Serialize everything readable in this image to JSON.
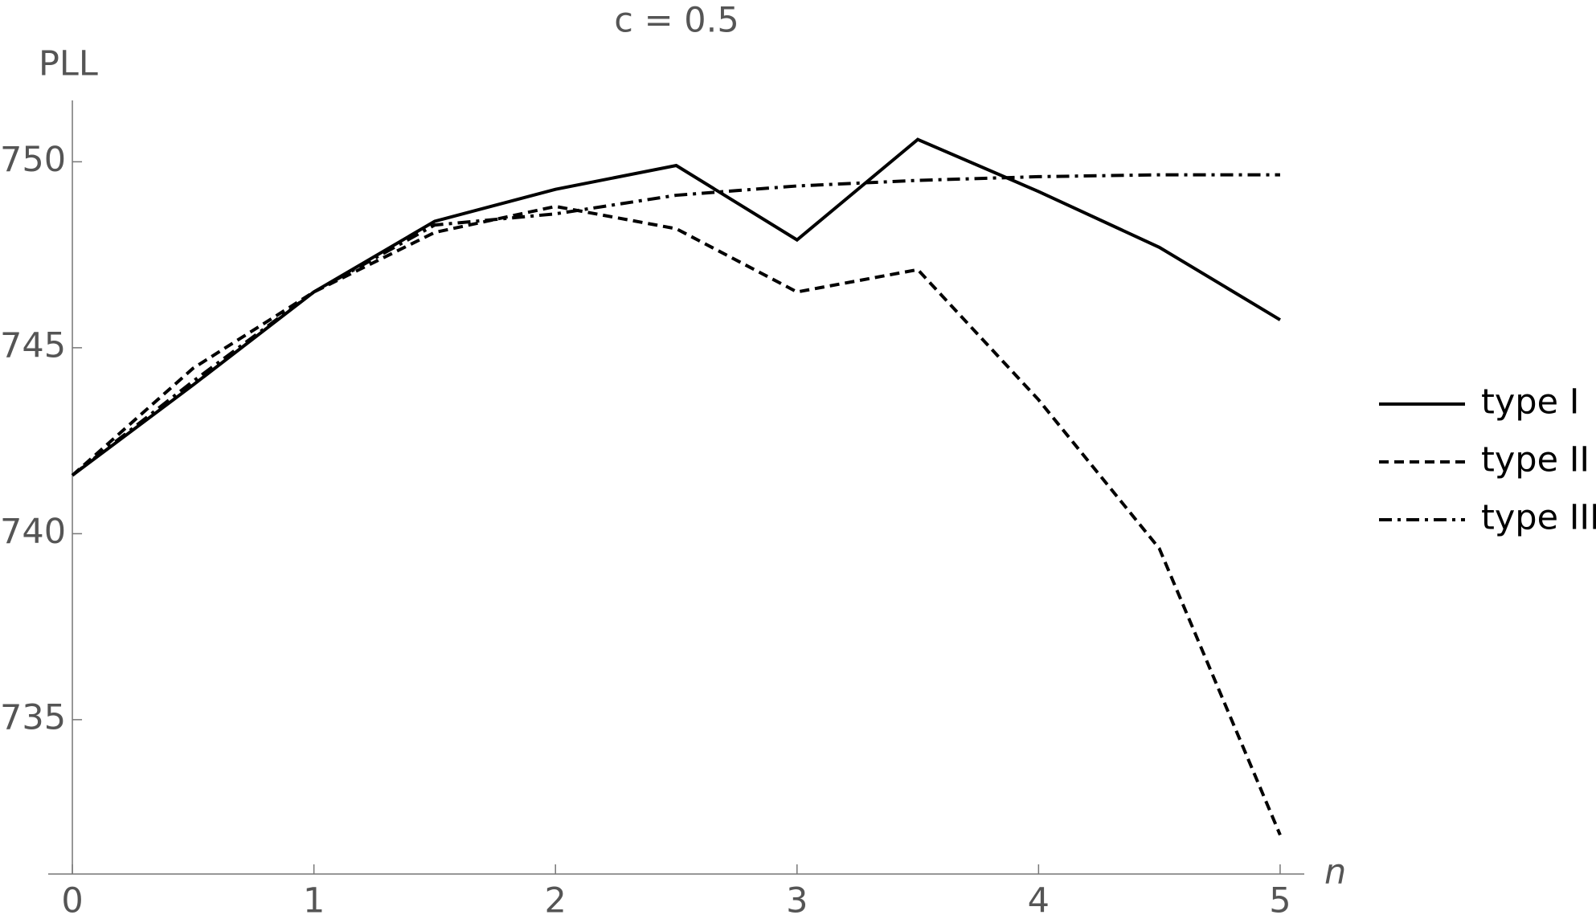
{
  "chart_data": {
    "type": "line",
    "title": "c = 0.5",
    "y_label": "PLL",
    "x_label": "n",
    "x": [
      0,
      0.5,
      1,
      1.5,
      2,
      2.5,
      3,
      3.5,
      4,
      4.5,
      5
    ],
    "series": [
      {
        "name": "type I",
        "color": "#000000",
        "line_style": "solid",
        "values": [
          741.57,
          744.0,
          746.5,
          748.4,
          749.26,
          749.9,
          747.9,
          750.6,
          749.2,
          747.7,
          745.75
        ]
      },
      {
        "name": "type II",
        "color": "#000000",
        "line_style": "dashed",
        "values": [
          741.57,
          744.45,
          746.5,
          748.1,
          748.8,
          748.2,
          746.5,
          747.1,
          743.6,
          739.6,
          731.9
        ]
      },
      {
        "name": "type III",
        "color": "#000000",
        "line_style": "dashdot",
        "values": [
          741.57,
          744.1,
          746.5,
          748.3,
          748.6,
          749.1,
          749.35,
          749.5,
          749.6,
          749.65,
          749.65
        ]
      }
    ],
    "xlim": [
      -0.1,
      5.1
    ],
    "ylim": [
      730.85,
      751.65
    ],
    "xticks": [
      0,
      1,
      2,
      3,
      4,
      5
    ],
    "yticks": [
      735,
      740,
      745,
      750
    ],
    "legend": "right"
  }
}
